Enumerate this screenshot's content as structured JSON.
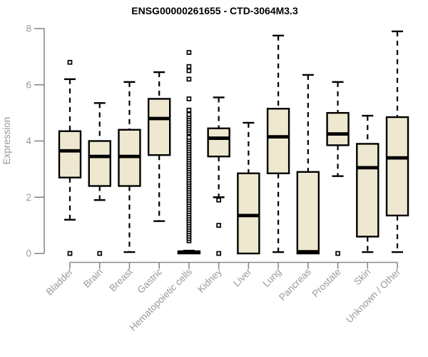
{
  "chart_data": {
    "type": "boxplot",
    "title": "ENSG00000261655 - CTD-3064M3.3",
    "ylabel": "Expression",
    "xlabel": "",
    "ylim": [
      0,
      8
    ],
    "yticks": [
      0,
      2,
      4,
      6,
      8
    ],
    "grid": false,
    "legend": "none",
    "colors": {
      "box_fill": "#EDE8CF",
      "box_stroke": "#000000",
      "median": "#000000",
      "whisker": "#000000",
      "axis": "#898989",
      "tick_label": "#999999",
      "title": "#000000",
      "background": "#FFFFFF"
    },
    "categories": [
      "Bladder",
      "Brain",
      "Breast",
      "Gastric",
      "Hematopoietic cells",
      "Kidney",
      "Liver",
      "Lung",
      "Pancreas",
      "Prostate",
      "Skin",
      "Unknown / Other"
    ],
    "boxes": [
      {
        "label": "Bladder",
        "whisker_low": 1.2,
        "q1": 2.7,
        "median": 3.65,
        "q3": 4.35,
        "whisker_high": 6.2,
        "outliers": [
          6.8,
          0
        ]
      },
      {
        "label": "Brain",
        "whisker_low": 1.9,
        "q1": 2.4,
        "median": 3.45,
        "q3": 4.0,
        "whisker_high": 5.35,
        "outliers": [
          0
        ]
      },
      {
        "label": "Breast",
        "whisker_low": 0.05,
        "q1": 2.4,
        "median": 3.45,
        "q3": 4.4,
        "whisker_high": 6.1,
        "outliers": []
      },
      {
        "label": "Gastric",
        "whisker_low": 1.15,
        "q1": 3.5,
        "median": 4.8,
        "q3": 5.5,
        "whisker_high": 6.45,
        "outliers": []
      },
      {
        "label": "Hematopoietic cells",
        "whisker_low": 0,
        "q1": 0,
        "median": 0.04,
        "q3": 0.08,
        "whisker_high": 0.1,
        "outliers": [
          0.45,
          0.53,
          0.61,
          0.69,
          0.77,
          0.85,
          0.93,
          1.01,
          1.09,
          1.17,
          1.25,
          1.33,
          1.41,
          1.49,
          1.57,
          1.65,
          1.73,
          1.81,
          1.89,
          1.97,
          2.05,
          2.13,
          2.21,
          2.29,
          2.37,
          2.45,
          2.53,
          2.61,
          2.69,
          2.77,
          2.85,
          2.93,
          3.01,
          3.09,
          3.17,
          3.25,
          3.33,
          3.41,
          3.49,
          3.57,
          3.65,
          3.73,
          3.81,
          3.89,
          3.97,
          4.05,
          4.13,
          4.3,
          4.38,
          4.46,
          4.54,
          4.62,
          4.7,
          4.78,
          4.86,
          4.94,
          5.1,
          5.5,
          6.2,
          6.5,
          6.65,
          7.15
        ]
      },
      {
        "label": "Kidney",
        "whisker_low": 2.0,
        "q1": 3.45,
        "median": 4.1,
        "q3": 4.45,
        "whisker_high": 5.55,
        "outliers": [
          1.9,
          1.0,
          0
        ]
      },
      {
        "label": "Liver",
        "whisker_low": 0,
        "q1": 0,
        "median": 1.35,
        "q3": 2.85,
        "whisker_high": 4.65,
        "outliers": []
      },
      {
        "label": "Lung",
        "whisker_low": 0.05,
        "q1": 2.85,
        "median": 4.15,
        "q3": 5.15,
        "whisker_high": 7.75,
        "outliers": []
      },
      {
        "label": "Pancreas",
        "whisker_low": 0,
        "q1": 0,
        "median": 0.06,
        "q3": 2.9,
        "whisker_high": 6.35,
        "outliers": []
      },
      {
        "label": "Prostate",
        "whisker_low": 2.75,
        "q1": 3.85,
        "median": 4.25,
        "q3": 5.0,
        "whisker_high": 6.1,
        "outliers": [
          0
        ]
      },
      {
        "label": "Skin",
        "whisker_low": 0.05,
        "q1": 0.6,
        "median": 3.05,
        "q3": 3.9,
        "whisker_high": 4.9,
        "outliers": []
      },
      {
        "label": "Unknown / Other",
        "whisker_low": 0.05,
        "q1": 1.35,
        "median": 3.4,
        "q3": 4.85,
        "whisker_high": 7.9,
        "outliers": []
      }
    ]
  }
}
